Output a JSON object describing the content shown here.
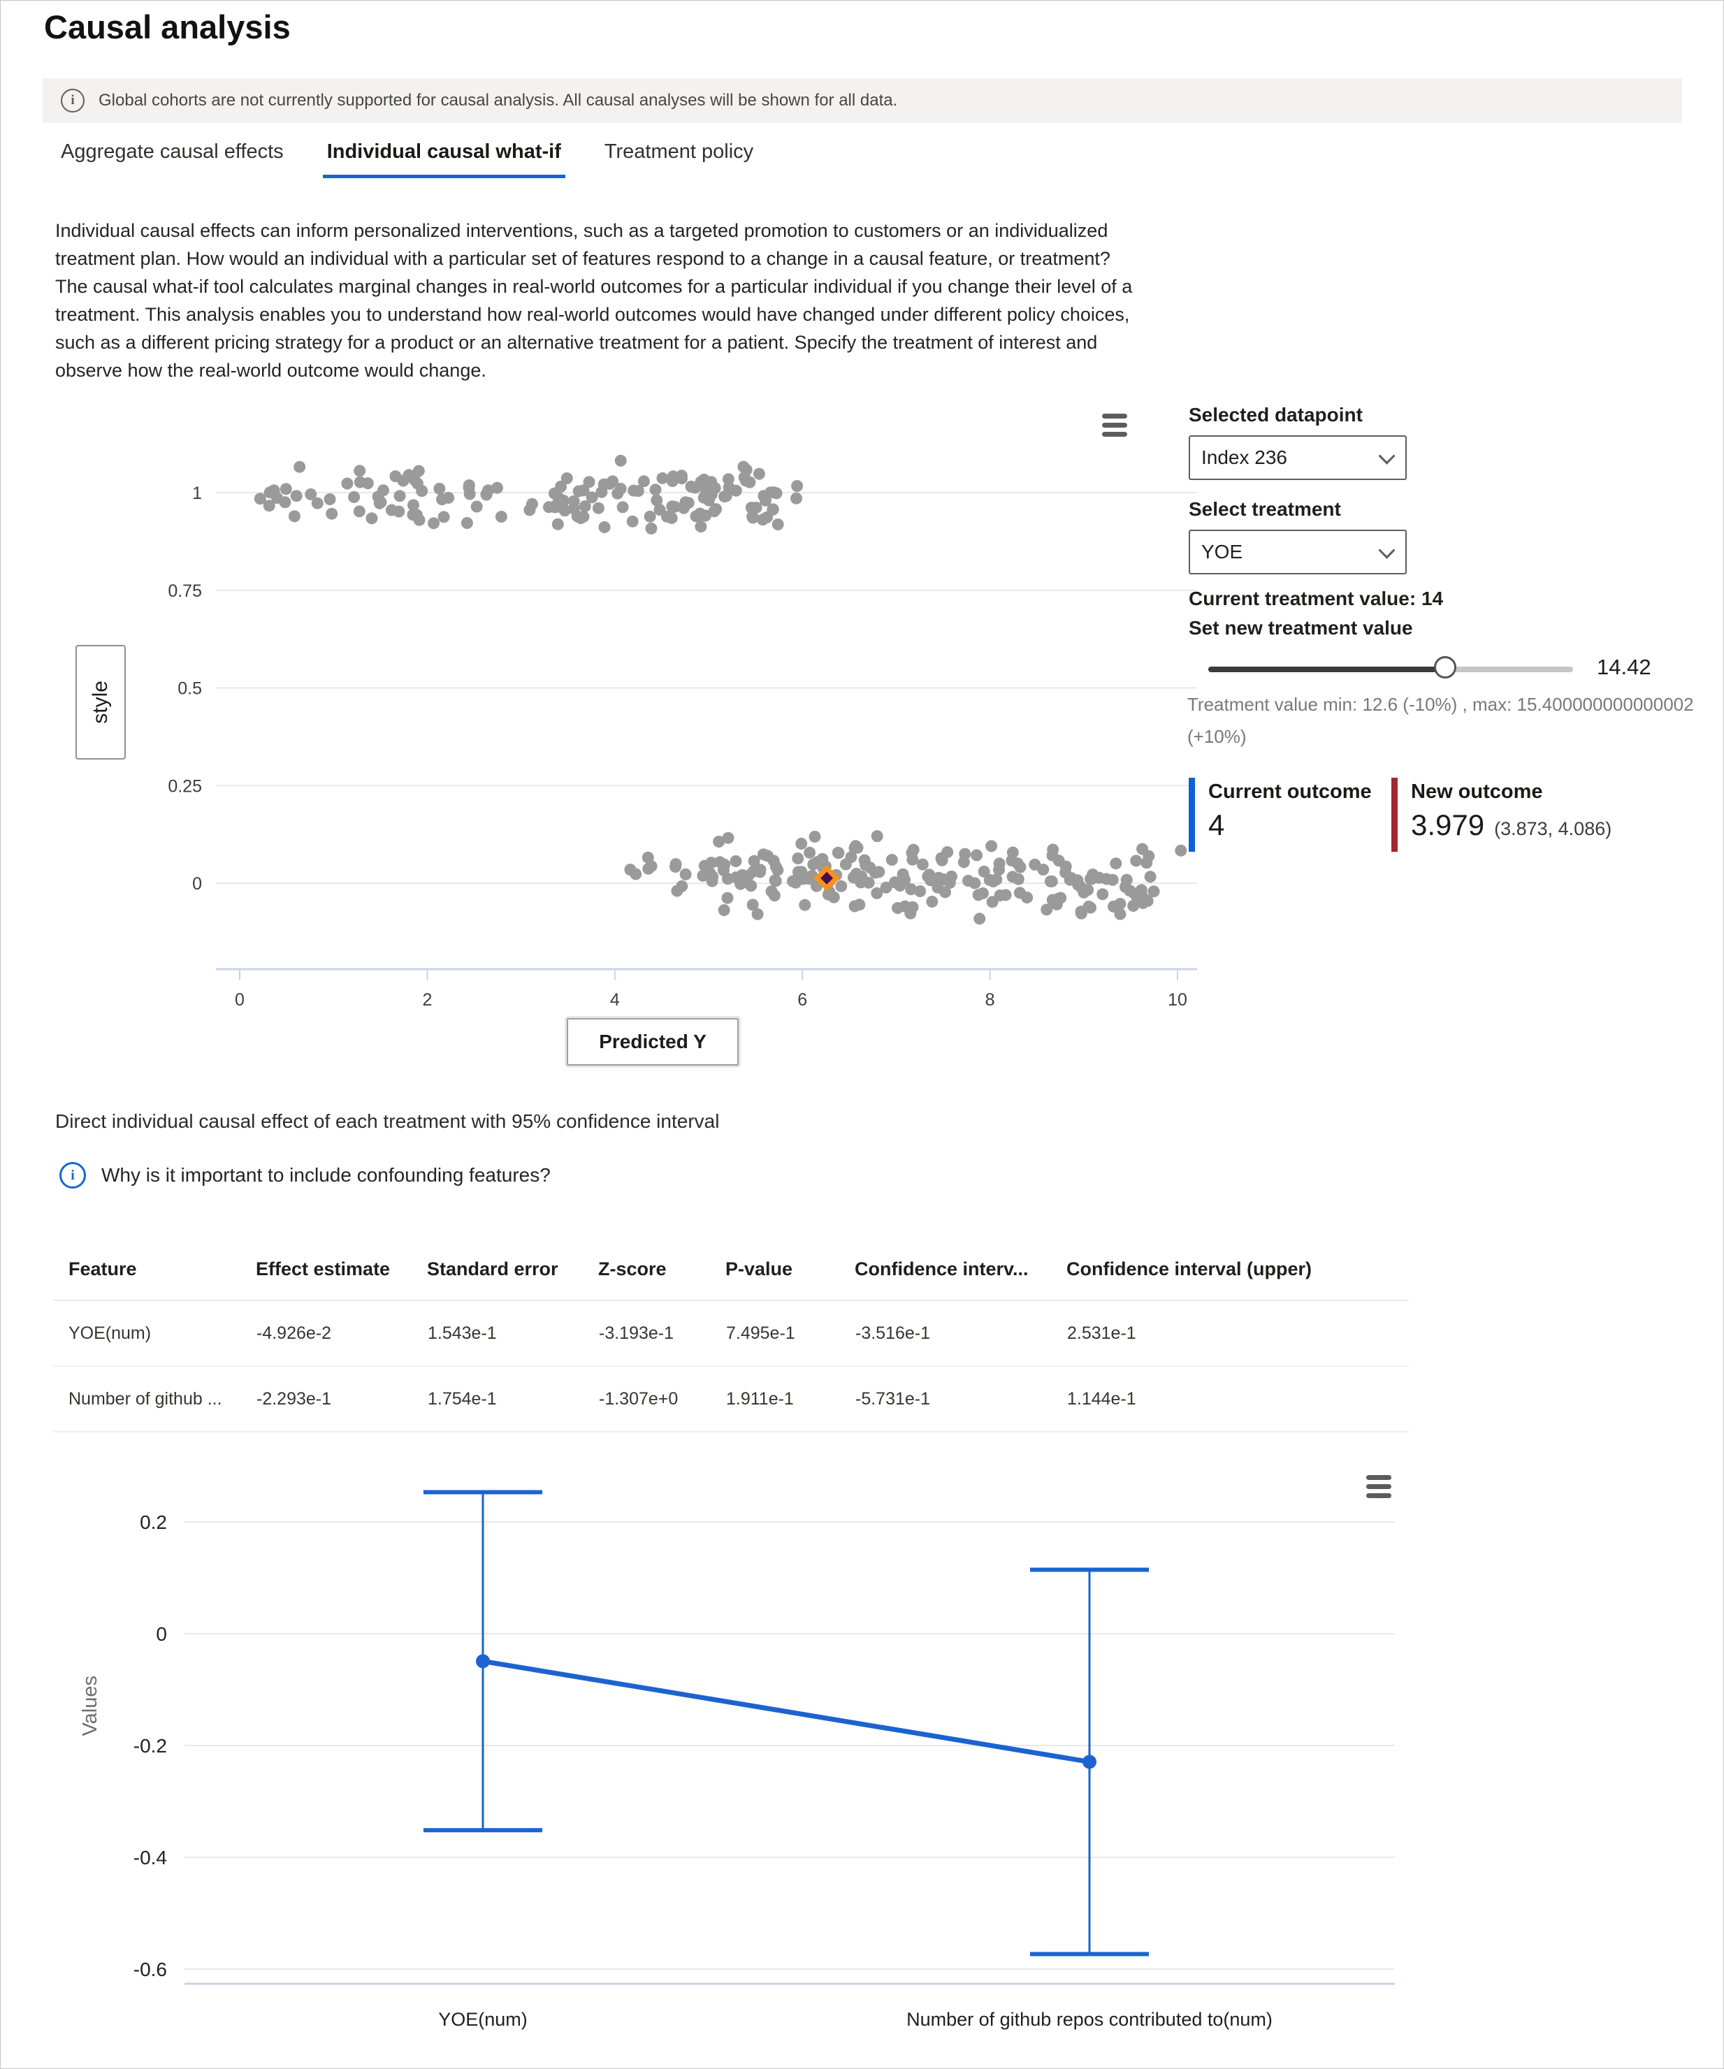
{
  "page": {
    "title": "Causal analysis"
  },
  "banner": {
    "text": "Global cohorts are not currently supported for causal analysis. All causal analyses will be shown for all data."
  },
  "tabs": [
    {
      "label": "Aggregate causal effects",
      "active": false
    },
    {
      "label": "Individual causal what-if",
      "active": true
    },
    {
      "label": "Treatment policy",
      "active": false
    }
  ],
  "description": "Individual causal effects can inform personalized interventions, such as a targeted promotion to customers or an individualized treatment plan. How would an individual with a particular set of features respond to a change in a causal feature, or treatment? The causal what-if tool calculates marginal changes in real-world outcomes for a particular individual if you change their level of a treatment. This analysis enables you to understand how real-world outcomes would have changed under different policy choices, such as a different pricing strategy for a product or an alternative treatment for a patient. Specify the treatment of interest and observe how the real-world outcome would change.",
  "whatif_panel": {
    "selected_datapoint_label": "Selected datapoint",
    "selected_datapoint_value": "Index 236",
    "select_treatment_label": "Select treatment",
    "treatment_value": "YOE",
    "current_treatment_label": "Current treatment value: 14",
    "set_treatment_label": "Set new treatment value",
    "slider": {
      "min": 12.6,
      "max": 15.4,
      "value": 14.42,
      "display": "14.42"
    },
    "range_note_line1": "Treatment value min: 12.6 (-10%) , max: 15.400000000000002",
    "range_note_line2": "(+10%)"
  },
  "outcomes": {
    "current": {
      "label": "Current outcome",
      "value": "4",
      "bar_color": "#0b63d6"
    },
    "new": {
      "label": "New outcome",
      "value": "3.979",
      "ci": "(3.873, 4.086)",
      "bar_color": "#a4262c"
    }
  },
  "effects_section": {
    "title": "Direct individual causal effect of each treatment with 95% confidence interval",
    "confounding_question": "Why is it important to include confounding features?"
  },
  "table": {
    "columns": [
      "Feature",
      "Effect estimate",
      "Standard error",
      "Z-score",
      "P-value",
      "Confidence interv...",
      "Confidence interval (upper)"
    ],
    "rows": [
      [
        "YOE(num)",
        "-4.926e-2",
        "1.543e-1",
        "-3.193e-1",
        "7.495e-1",
        "-3.516e-1",
        "2.531e-1"
      ],
      [
        "Number of github ...",
        "-2.293e-1",
        "1.754e-1",
        "-1.307e+0",
        "1.911e-1",
        "-5.731e-1",
        "1.144e-1"
      ]
    ]
  },
  "colors": {
    "accent": "#1665cf",
    "scatter_point": "#9a9a9a",
    "errorbar_blue": "#1b63d0"
  },
  "chart_data": [
    {
      "type": "scatter",
      "title": "",
      "xlabel": "Predicted Y",
      "ylabel": "style",
      "xticks": [
        0,
        2,
        4,
        6,
        8,
        10
      ],
      "yticks": [
        1,
        0.75,
        0.5,
        0.25,
        0
      ],
      "xlim": [
        -0.25,
        10.2
      ],
      "ylim": [
        -0.22,
        1.13
      ],
      "grid": true,
      "legend": "none",
      "point_color": "#9a9a9a",
      "clusters": [
        {
          "name": "upper-left",
          "count": 54,
          "seed": 11,
          "x_range": [
            0.15,
            2.85
          ],
          "y_range": [
            0.895,
            1.09
          ]
        },
        {
          "name": "upper-mid",
          "count": 3,
          "seed": 77,
          "x_range": [
            2.9,
            3.35
          ],
          "y_range": [
            0.9,
            1.05
          ]
        },
        {
          "name": "upper-right",
          "count": 96,
          "seed": 22,
          "x_range": [
            3.35,
            5.95
          ],
          "y_range": [
            0.895,
            1.095
          ]
        },
        {
          "name": "lower-tail",
          "count": 13,
          "seed": 33,
          "x_range": [
            4.15,
            5.05
          ],
          "y_range": [
            -0.06,
            0.09
          ]
        },
        {
          "name": "lower-main",
          "count": 192,
          "seed": 44,
          "x_range": [
            5.0,
            9.75
          ],
          "y_range": [
            -0.1,
            0.125
          ]
        },
        {
          "name": "outlier",
          "count": 1,
          "seed": 55,
          "x_range": [
            10.0,
            10.08
          ],
          "y_range": [
            0.06,
            0.09
          ]
        }
      ],
      "selected_point": {
        "x": 6.26,
        "y": 0.013,
        "marker": "diamond",
        "outer_color": "#f7921e",
        "inner_color": "#4a0d4f"
      },
      "pixel_layout": {
        "left": 308,
        "right": 1712,
        "bottom": 1386,
        "x0": 342,
        "dx": 134.2,
        "y0": 1263,
        "unit": 559,
        "grid_color": "#e8e8e8",
        "axis_color": "#c9d3e8",
        "tick_color": "#3d3d3d"
      }
    },
    {
      "type": "line",
      "title": "",
      "xlabel": "",
      "ylabel": "Values",
      "categories": [
        "YOE(num)",
        "Number of github repos contributed to(num)"
      ],
      "values": [
        -0.04926,
        -0.2293
      ],
      "ci_lower": [
        -0.3516,
        -0.5731
      ],
      "ci_upper": [
        0.2531,
        0.1144
      ],
      "yticks": [
        0.2,
        0,
        -0.2,
        -0.4,
        -0.6
      ],
      "ylim": [
        -0.63,
        0.35
      ],
      "grid": true,
      "legend": "none",
      "line_color": "#1b63d0",
      "pixel_layout": {
        "left": 263,
        "right": 1995,
        "x_positions": [
          690,
          1558
        ],
        "y0": 2337,
        "unit": 800,
        "axis_y": 2838,
        "cap_width": 170,
        "label_y": 2898,
        "tick_x": 238,
        "grid_color": "#e8e8e8",
        "axis_color": "#c9d3e8",
        "tick_color": "#1f1f1f"
      }
    }
  ]
}
